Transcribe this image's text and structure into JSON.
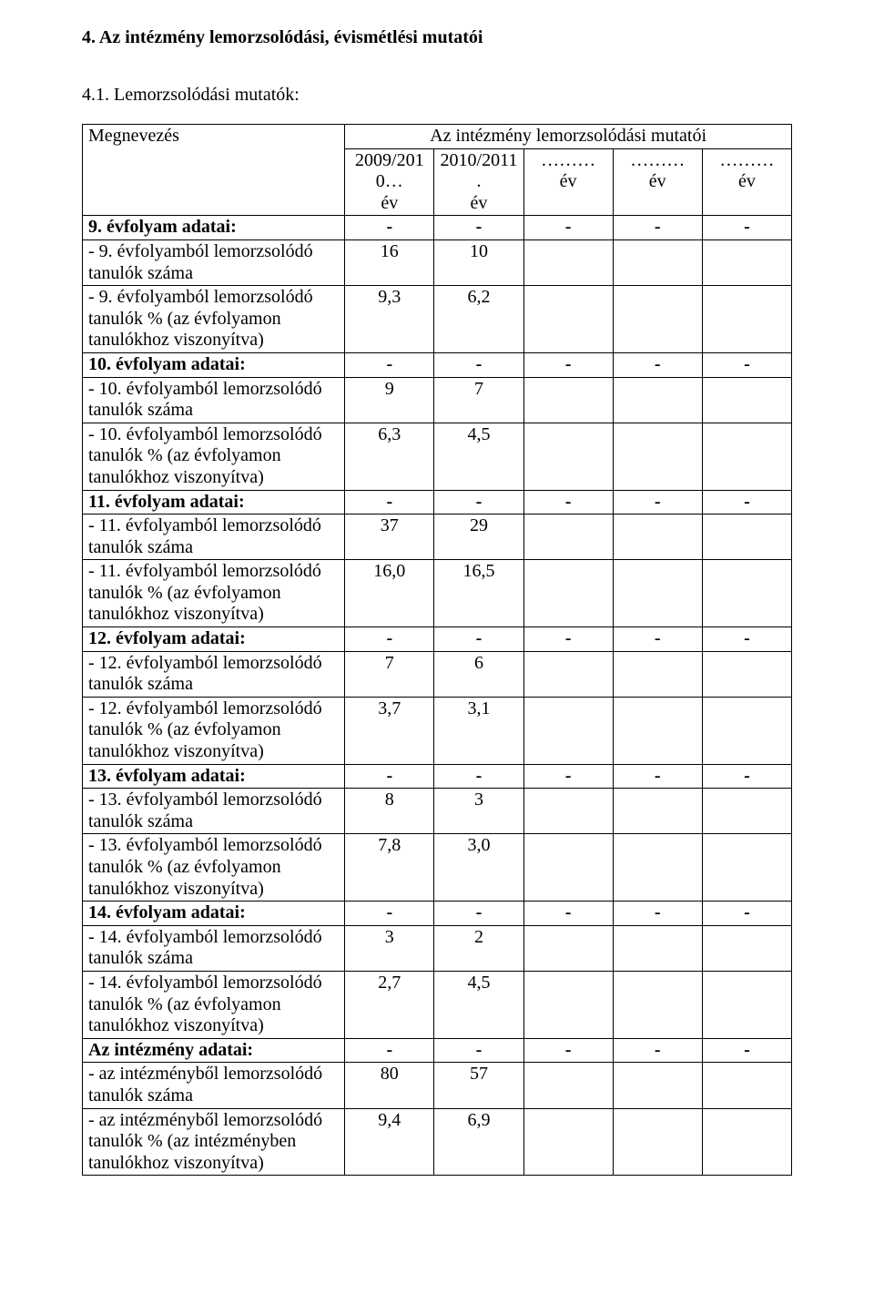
{
  "headings": {
    "section": "4. Az intézmény lemorzsolódási, évismétlési mutatói",
    "subsection": "4.1. Lemorzsolódási mutatók:"
  },
  "table": {
    "header": {
      "megnevezes": "Megnevezés",
      "group": "Az intézmény lemorzsolódási mutatói",
      "col1_top": "2009/2010…",
      "col1_bot": "év",
      "col2_top": "2010/2011.",
      "col2_bot": "év",
      "col3_top": "………",
      "col3_bot": "év",
      "col4_top": "………",
      "col4_bot": "év",
      "col5_top": "………",
      "col5_bot": "év"
    },
    "rows": [
      {
        "label": "9. évfolyam adatai:",
        "bold": true,
        "v": [
          "-",
          "-",
          "-",
          "-",
          "-"
        ]
      },
      {
        "label": "- 9. évfolyamból lemorzsolódó tanulók száma",
        "v": [
          "16",
          "10",
          "",
          "",
          ""
        ]
      },
      {
        "label": "- 9. évfolyamból lemorzsolódó tanulók % (az évfolyamon tanulókhoz viszonyítva)",
        "v": [
          "9,3",
          "6,2",
          "",
          "",
          ""
        ]
      },
      {
        "label": "10. évfolyam adatai:",
        "bold": true,
        "v": [
          "-",
          "-",
          "-",
          "-",
          "-"
        ]
      },
      {
        "label": "- 10. évfolyamból lemorzsolódó tanulók száma",
        "v": [
          "9",
          "7",
          "",
          "",
          ""
        ]
      },
      {
        "label": "- 10. évfolyamból lemorzsolódó tanulók % (az évfolyamon tanulókhoz viszonyítva)",
        "v": [
          "6,3",
          "4,5",
          "",
          "",
          ""
        ]
      },
      {
        "label": "11. évfolyam adatai:",
        "bold": true,
        "v": [
          "-",
          "-",
          "-",
          "-",
          "-"
        ]
      },
      {
        "label": "- 11. évfolyamból lemorzsolódó tanulók száma",
        "v": [
          "37",
          "29",
          "",
          "",
          ""
        ]
      },
      {
        "label": "- 11. évfolyamból lemorzsolódó tanulók % (az évfolyamon tanulókhoz viszonyítva)",
        "v": [
          "16,0",
          "16,5",
          "",
          "",
          ""
        ]
      },
      {
        "label": "12. évfolyam adatai:",
        "bold": true,
        "v": [
          "-",
          "-",
          "-",
          "-",
          "-"
        ]
      },
      {
        "label": "- 12. évfolyamból lemorzsolódó tanulók száma",
        "v": [
          "7",
          "6",
          "",
          "",
          ""
        ]
      },
      {
        "label": "- 12. évfolyamból lemorzsolódó tanulók % (az évfolyamon tanulókhoz viszonyítva)",
        "v": [
          "3,7",
          "3,1",
          "",
          "",
          ""
        ]
      },
      {
        "label": "13. évfolyam adatai:",
        "bold": true,
        "v": [
          "-",
          "-",
          "-",
          "-",
          "-"
        ]
      },
      {
        "label": "- 13. évfolyamból lemorzsolódó tanulók száma",
        "v": [
          "8",
          "3",
          "",
          "",
          ""
        ]
      },
      {
        "label": "- 13. évfolyamból lemorzsolódó tanulók % (az évfolyamon tanulókhoz viszonyítva)",
        "v": [
          "7,8",
          "3,0",
          "",
          "",
          ""
        ]
      },
      {
        "label": "14. évfolyam adatai:",
        "bold": true,
        "v": [
          "-",
          "-",
          "-",
          "-",
          "-"
        ]
      },
      {
        "label": "- 14. évfolyamból lemorzsolódó tanulók száma",
        "v": [
          "3",
          "2",
          "",
          "",
          ""
        ]
      },
      {
        "label": "- 14. évfolyamból lemorzsolódó tanulók % (az évfolyamon tanulókhoz viszonyítva)",
        "v": [
          "2,7",
          "4,5",
          "",
          "",
          ""
        ]
      },
      {
        "label": "Az intézmény adatai:",
        "bold": true,
        "v": [
          "-",
          "-",
          "-",
          "-",
          "-"
        ]
      },
      {
        "label": "- az intézményből lemorzsolódó tanulók száma",
        "v": [
          "80",
          "57",
          "",
          "",
          ""
        ]
      },
      {
        "label": "- az intézményből lemorzsolódó tanulók % (az intézményben tanulókhoz viszonyítva)",
        "v": [
          "9,4",
          "6,9",
          "",
          "",
          ""
        ]
      }
    ]
  }
}
